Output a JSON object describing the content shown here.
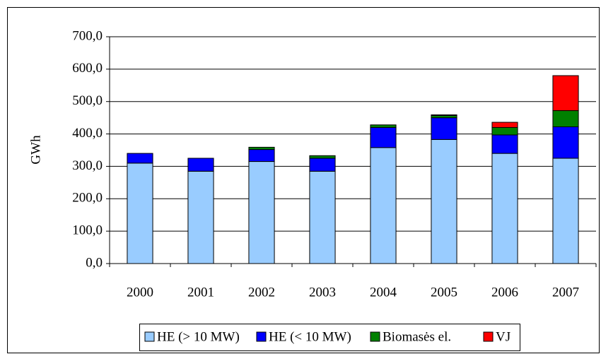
{
  "chart_data": {
    "type": "stacked_bar",
    "y_label": "GWh",
    "categories": [
      "2000",
      "2001",
      "2002",
      "2003",
      "2004",
      "2005",
      "2006",
      "2007"
    ],
    "series": [
      {
        "name": "HE (> 10 MW)",
        "color": "#99ccff",
        "values": [
          310,
          285,
          315,
          285,
          358,
          383,
          340,
          325
        ]
      },
      {
        "name": "HE (< 10 MW)",
        "color": "#0000ff",
        "values": [
          30,
          40,
          37,
          40,
          62,
          67,
          57,
          97
        ]
      },
      {
        "name": "Biomasės el.",
        "color": "#008000",
        "values": [
          0,
          0,
          7,
          8,
          8,
          7,
          23,
          50
        ]
      },
      {
        "name": "VJ",
        "color": "#ff0000",
        "values": [
          0,
          0,
          0,
          0,
          0,
          2,
          16,
          108
        ]
      }
    ],
    "ylim": [
      0,
      700
    ],
    "yticks": [
      {
        "value": 0,
        "label": "0,0"
      },
      {
        "value": 100,
        "label": "100,0"
      },
      {
        "value": 200,
        "label": "200,0"
      },
      {
        "value": 300,
        "label": "300,0"
      },
      {
        "value": 400,
        "label": "400,0"
      },
      {
        "value": 500,
        "label": "500,0"
      },
      {
        "value": 600,
        "label": "600,0"
      },
      {
        "value": 700,
        "label": "700,0"
      }
    ],
    "grid": true,
    "legend": "bottom"
  }
}
